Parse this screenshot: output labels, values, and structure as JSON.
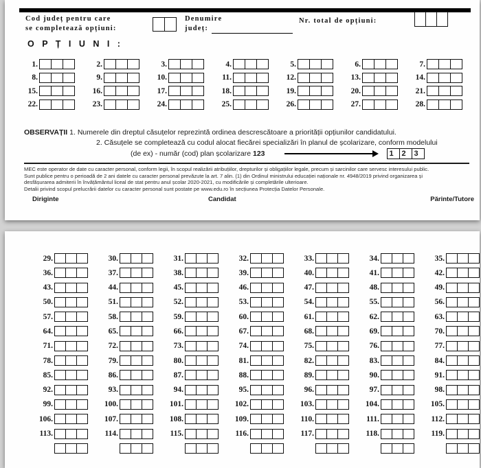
{
  "page1": {
    "header": {
      "cod_judet_label_line1": "Cod județ pentru care",
      "cod_judet_label_line2": "se completează opțiuni:",
      "cod_judet_cells": 2,
      "denumire_label_line1": "Denumire",
      "denumire_label_line2": "județ:",
      "denumire_value": "",
      "nr_total_label": "Nr. total de opțiuni:",
      "nr_total_cells": 3
    },
    "optiuni_heading": "O P Ț I U N I :",
    "option_numbers": [
      "1.",
      "2.",
      "3.",
      "4.",
      "5.",
      "6.",
      "7.",
      "8.",
      "9.",
      "10.",
      "11.",
      "12.",
      "13.",
      "14.",
      "15.",
      "16.",
      "17.",
      "18.",
      "19.",
      "20.",
      "21.",
      "22.",
      "23.",
      "24.",
      "25.",
      "26.",
      "27.",
      "28."
    ],
    "cells_per_box": 3,
    "observatii": {
      "title": "OBSERVAȚII",
      "note1": "1. Numerele din dreptul căsuțelor reprezintă ordinea descrescătoare a priorității opțiunilor candidatului.",
      "note2": "2. Căsuțele se completează cu codul alocat fiecărei specializări în planul de școlarizare, conform modelului",
      "example_prefix": "(de ex) - număr (cod) plan școlarizare",
      "example_code": "123",
      "example_cells": [
        "1",
        "2",
        "3"
      ]
    },
    "legal_lines": [
      "MEC este operator de date cu caracter personal, conform legii, în scopul realizării atribuțiilor, drepturilor și obligațiilor legale, precum și sarcinilor care servesc interesului public.",
      "Sunt publice pentru o perioadă de 2 ani datele cu caracter personal prevăzute la art. 7 alin. (1) din Ordinul ministrului educației naționale nr. 4948/2019 privind organizarea și",
      "desfășurarea admiterii în învățământul liceal de stat pentru anul școlar 2020-2021, cu modificările și completările ulterioare.",
      "Detalii privind scopul prelucrării datelor cu caracter personal sunt postate pe www.edu.ro în secțiunea Protecția Datelor Personale."
    ],
    "signatures": [
      "Diriginte",
      "Candidat",
      "Părinte/Tutore"
    ]
  },
  "page2": {
    "option_numbers": [
      "29.",
      "30.",
      "31.",
      "32.",
      "33.",
      "34.",
      "35.",
      "36.",
      "37.",
      "38.",
      "39.",
      "40.",
      "41.",
      "42.",
      "43.",
      "44.",
      "45.",
      "46.",
      "47.",
      "48.",
      "49.",
      "50.",
      "51.",
      "52.",
      "53.",
      "54.",
      "55.",
      "56.",
      "57.",
      "58.",
      "59.",
      "60.",
      "61.",
      "62.",
      "63.",
      "64.",
      "65.",
      "66.",
      "67.",
      "68.",
      "69.",
      "70.",
      "71.",
      "72.",
      "73.",
      "74.",
      "75.",
      "76.",
      "77.",
      "78.",
      "79.",
      "80.",
      "81.",
      "82.",
      "83.",
      "84.",
      "85.",
      "86.",
      "87.",
      "88.",
      "89.",
      "90.",
      "91.",
      "92.",
      "93.",
      "94.",
      "95.",
      "96.",
      "97.",
      "98.",
      "99.",
      "100.",
      "101.",
      "102.",
      "103.",
      "104.",
      "105.",
      "106.",
      "107.",
      "108.",
      "109.",
      "110.",
      "111.",
      "112.",
      "113.",
      "114.",
      "115.",
      "116.",
      "117.",
      "118.",
      "119."
    ],
    "partial_row_boxes": 7,
    "per_row": 7
  },
  "colors": {
    "ink": "#111111",
    "page": "#fefefe",
    "background": "#d2d2d2"
  }
}
